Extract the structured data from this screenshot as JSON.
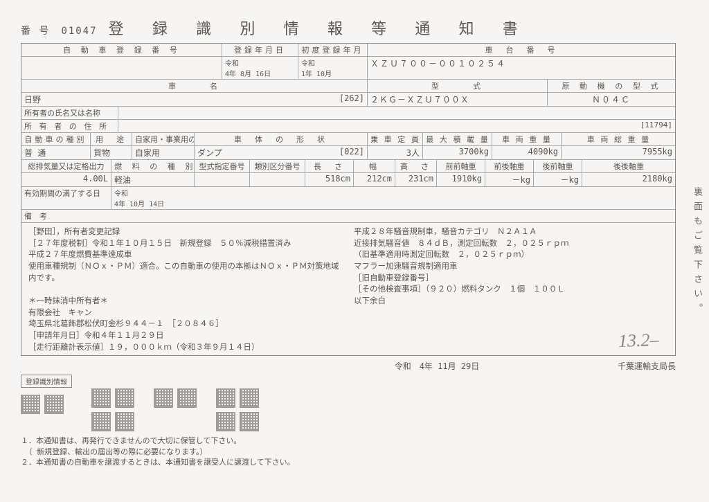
{
  "header": {
    "doc_no_label": "番 号",
    "doc_no": "01047",
    "title": "登 録 識 別 情 報 等 通 知 書"
  },
  "row1": {
    "reg_no_label": "自 動 車 登 録 番 号",
    "reg_date_label": "登録年月日",
    "first_reg_label": "初度登録年月",
    "chassis_label": "車　台　番　号"
  },
  "row2": {
    "era1": "令和",
    "reg_date": "4年 8月 16日",
    "era2": "令和",
    "first_reg": "1年 10月",
    "chassis": "ＸＺＵ７００－００１０２５４"
  },
  "row3": {
    "make_label": "車　　　名",
    "type_label": "型　　　式",
    "engine_label": "原 動 機 の 型 式"
  },
  "row4": {
    "make": "日野",
    "type_code": "[262]",
    "type": "２ＫＧ－ＸＺＵ７００Ｘ",
    "engine": "Ｎ０４Ｃ"
  },
  "owner_name_label": "所有者の氏名又は名称",
  "owner_addr_label": "所 有 者 の 住 所",
  "owner_addr_num": "[11794]",
  "row7": {
    "class_label": "自動車の種別",
    "use_label": "用　途",
    "priv_label": "自家用・事業用の別",
    "body_label": "車　体　の　形　状",
    "cap_label": "乗 車 定 員",
    "load_label": "最 大 積 載 量",
    "weight_label": "車 両 重 量",
    "gross_label": "車 両 総 重 量"
  },
  "row8": {
    "class": "普 通",
    "use": "貨物",
    "priv": "自家用",
    "body": "ダンプ",
    "body_num": "[022]",
    "cap": "3人",
    "load": "3700kg",
    "weight": "4090kg",
    "gross": "7955kg"
  },
  "row9": {
    "disp_label": "総排気量又は定格出力",
    "fuel_label": "燃 料 の 種 別",
    "desig_label": "型式指定番号",
    "cat_label": "類別区分番号",
    "len_label": "長　さ",
    "wid_label": "幅",
    "hei_label": "高　さ",
    "ff_label": "前前軸重",
    "fr_label": "前後軸重",
    "rf_label": "後前軸重",
    "rr_label": "後後軸重"
  },
  "row10": {
    "disp": "4.00L",
    "fuel": "軽油",
    "len": "518cm",
    "wid": "212cm",
    "hei": "231cm",
    "ff": "1910kg",
    "fr": "－kg",
    "rf": "－kg",
    "rr": "2180kg"
  },
  "expiry_label": "有効期間の満了する日",
  "expiry_era": "令和",
  "expiry_date": "4年 10月 14日",
  "remarks_label": "備　考",
  "remarks_left": [
    "［野田］，所有者変更記録",
    "［２７年度税制］令和１年１０月１５日　新規登録　５０％減税措置済み",
    "平成２７年度燃費基準達成車",
    "使用車種規制（ＮＯｘ・ＰＭ）適合。この自動車の使用の本拠はＮＯｘ・ＰＭ対策地域内です。",
    "",
    "＊一時抹消中所有者＊",
    "有限会社　キャン",
    "埼玉県北葛飾郡松伏町金杉９４４－１　［２０８４６］",
    "［申請年月日］令和４年１１月２９日",
    "［走行距離計表示値］１９，０００ｋｍ（令和３年９月１４日）"
  ],
  "remarks_right": [
    "平成２８年騒音規制車，騒音カテゴリ　Ｎ２Ａ１Ａ",
    "近接排気騒音値　８４ｄＢ，測定回転数　２，０２５ｒｐｍ",
    "（旧基準適用時測定回転数　２，０２５ｒｐｍ）",
    "マフラー加速騒音規制適用車",
    "［旧自動車登録番号］",
    "［その他検査事項］（９２０）燃料タンク　１個　１００Ｌ",
    "以下余白"
  ],
  "handwritten": "13.2–",
  "footer": {
    "issue_date": "令和　4年 11月 29日",
    "issuer": "千葉運輸支局長"
  },
  "qr_label": "登録識別情報",
  "notes": [
    "１．本通知書は、再発行できませんので大切に保管して下さい。",
    "　（ 新規登録、輸出の届出等の際に必要になります。）",
    "２．本通知書の自動車を譲渡するときは、本通知書を譲受人に譲渡して下さい。"
  ],
  "side_text": "裏面もご覧下さい。",
  "colors": {
    "bg": "#f6f5f3",
    "ink": "#595552",
    "rule": "#aaa"
  }
}
